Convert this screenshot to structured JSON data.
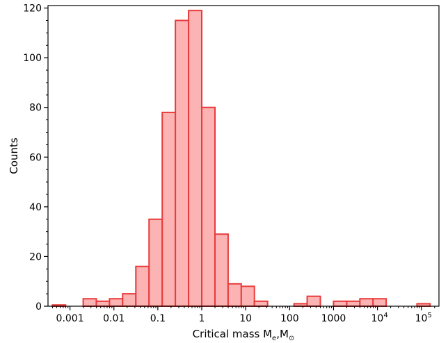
{
  "chart_data": {
    "type": "bar",
    "title": "",
    "xlabel": "Critical mass M",
    "xlabel_sub1": "e",
    "xlabel_mid": ",M",
    "xlabel_sub2": "⊙",
    "ylabel": "Counts",
    "xscale": "log",
    "xlim": [
      0.000316,
      251189
    ],
    "ylim": [
      0,
      121
    ],
    "grid": false,
    "bar_color": "#fbb3b3",
    "edge_color": "#e83a3a",
    "x_ticks": [
      {
        "value": 0.001,
        "label": "0.001"
      },
      {
        "value": 0.01,
        "label": "0.01"
      },
      {
        "value": 0.1,
        "label": "0.1"
      },
      {
        "value": 1,
        "label": "1"
      },
      {
        "value": 10,
        "label": "10"
      },
      {
        "value": 100,
        "label": "100"
      },
      {
        "value": 1000,
        "label": "1000"
      },
      {
        "value": 10000,
        "label": "10",
        "exp": "4"
      },
      {
        "value": 100000,
        "label": "10",
        "exp": "5"
      }
    ],
    "y_ticks": [
      0,
      20,
      40,
      60,
      80,
      100,
      120
    ],
    "bins": [
      {
        "x0": 0.000398,
        "x1": 0.000794,
        "count": 0.5
      },
      {
        "x0": 0.002,
        "x1": 0.00398,
        "count": 3
      },
      {
        "x0": 0.00398,
        "x1": 0.00794,
        "count": 2
      },
      {
        "x0": 0.00794,
        "x1": 0.0158,
        "count": 3
      },
      {
        "x0": 0.0158,
        "x1": 0.0316,
        "count": 5
      },
      {
        "x0": 0.0316,
        "x1": 0.0631,
        "count": 16
      },
      {
        "x0": 0.0631,
        "x1": 0.126,
        "count": 35
      },
      {
        "x0": 0.126,
        "x1": 0.251,
        "count": 78
      },
      {
        "x0": 0.251,
        "x1": 0.501,
        "count": 115
      },
      {
        "x0": 0.501,
        "x1": 1.0,
        "count": 119
      },
      {
        "x0": 1.0,
        "x1": 2.0,
        "count": 80
      },
      {
        "x0": 2.0,
        "x1": 3.98,
        "count": 29
      },
      {
        "x0": 3.98,
        "x1": 7.94,
        "count": 9
      },
      {
        "x0": 7.94,
        "x1": 15.8,
        "count": 8
      },
      {
        "x0": 15.8,
        "x1": 31.6,
        "count": 2
      },
      {
        "x0": 126,
        "x1": 251,
        "count": 1
      },
      {
        "x0": 251,
        "x1": 501,
        "count": 4
      },
      {
        "x0": 1000,
        "x1": 2000,
        "count": 2
      },
      {
        "x0": 2000,
        "x1": 3980,
        "count": 2
      },
      {
        "x0": 3980,
        "x1": 7940,
        "count": 3
      },
      {
        "x0": 7940,
        "x1": 15800,
        "count": 3
      },
      {
        "x0": 79400,
        "x1": 158000,
        "count": 1
      }
    ]
  }
}
